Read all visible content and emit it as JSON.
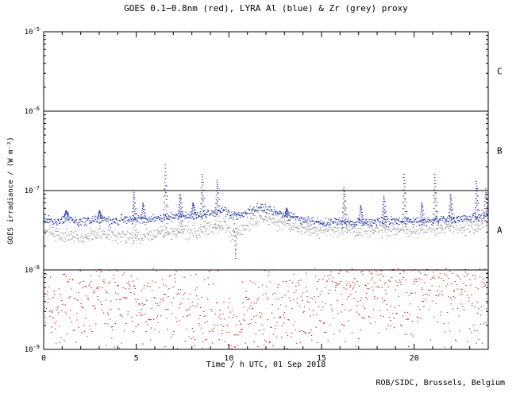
{
  "page": {
    "background": "#ffffff"
  },
  "credit": {
    "text": "ROB/SIDC, Brussels, Belgium"
  },
  "chart_data": {
    "type": "scatter",
    "title": "GOES 0.1−0.8nm (red), LYRA Al (blue) & Zr (grey) proxy",
    "xlabel": "Time / h UTC, 01 Sep 2018",
    "ylabel": "GOES irradiance / (W m⁻²)",
    "x_range": [
      0,
      24
    ],
    "x_major_ticks": [
      0,
      5,
      10,
      15,
      20
    ],
    "y_log_range": [
      -9,
      -5
    ],
    "y_tick_exponents": [
      -5,
      -6,
      -7,
      -8,
      -9
    ],
    "axis_color": "#000000",
    "grid": false,
    "legend_in_title": true,
    "class_boundaries": [
      {
        "label": "C",
        "line_value": 1e-06,
        "label_value": 3.2e-06
      },
      {
        "label": "B",
        "line_value": 1e-07,
        "label_value": 3.2e-07
      },
      {
        "label": "A",
        "line_value": 1e-08,
        "label_value": 3.2e-08
      }
    ],
    "series": [
      {
        "name": "GOES 0.1-0.8nm",
        "id": "goes-xrs",
        "color": "#cc2222",
        "points_per_hour": 40,
        "noise_dex": 0.3,
        "clip_max": 1.05e-08,
        "baseline": [
          [
            0,
            3e-09
          ],
          [
            1,
            3.2e-09
          ],
          [
            2,
            3.4e-09
          ],
          [
            3,
            3.6e-09
          ],
          [
            4,
            4e-09
          ],
          [
            5,
            4.2e-09
          ],
          [
            6,
            3.6e-09
          ],
          [
            7,
            3.2e-09
          ],
          [
            8,
            3e-09
          ],
          [
            9,
            2.6e-09
          ],
          [
            9.6,
            2e-09
          ],
          [
            10,
            1.4e-09
          ],
          [
            10.5,
            2e-09
          ],
          [
            11,
            2.8e-09
          ],
          [
            12,
            3.2e-09
          ],
          [
            13,
            3e-09
          ],
          [
            14,
            3.2e-09
          ],
          [
            15,
            3.8e-09
          ],
          [
            16,
            4.4e-09
          ],
          [
            17,
            4.6e-09
          ],
          [
            18,
            5e-09
          ],
          [
            19,
            4.6e-09
          ],
          [
            20,
            5e-09
          ],
          [
            21,
            4.8e-09
          ],
          [
            22,
            5.2e-09
          ],
          [
            23,
            4.8e-09
          ],
          [
            24,
            5e-09
          ]
        ],
        "spikes": [],
        "dips": []
      },
      {
        "name": "LYRA Zr proxy",
        "id": "lyra-zr-proxy",
        "color": "#9a9a9a",
        "points_per_hour": 40,
        "noise_dex": 0.045,
        "baseline": [
          [
            0,
            3.1e-08
          ],
          [
            1,
            2.8e-08
          ],
          [
            2,
            2.6e-08
          ],
          [
            3,
            2.9e-08
          ],
          [
            4,
            2.7e-08
          ],
          [
            5,
            2.6e-08
          ],
          [
            6,
            2.8e-08
          ],
          [
            7,
            3e-08
          ],
          [
            8,
            3.2e-08
          ],
          [
            9,
            3.3e-08
          ],
          [
            9.7,
            3.6e-08
          ],
          [
            10.1,
            2.9e-08
          ],
          [
            11,
            3.6e-08
          ],
          [
            11.7,
            4.6e-08
          ],
          [
            12.2,
            4.2e-08
          ],
          [
            13,
            3.6e-08
          ],
          [
            14,
            3.3e-08
          ],
          [
            15,
            3.1e-08
          ],
          [
            16,
            3.3e-08
          ],
          [
            17,
            3.1e-08
          ],
          [
            18,
            3.2e-08
          ],
          [
            19,
            3.3e-08
          ],
          [
            20,
            3.1e-08
          ],
          [
            21,
            3.3e-08
          ],
          [
            22,
            3.5e-08
          ],
          [
            23,
            3.5e-08
          ],
          [
            24,
            3.8e-08
          ]
        ],
        "spikes": [
          {
            "x": 4.85,
            "peak": 6.5e-08
          },
          {
            "x": 6.55,
            "peak": 1.15e-07
          },
          {
            "x": 7.35,
            "peak": 6e-08
          },
          {
            "x": 8.55,
            "peak": 9.5e-08
          },
          {
            "x": 9.35,
            "peak": 7.5e-08
          },
          {
            "x": 16.2,
            "peak": 7e-08
          },
          {
            "x": 18.35,
            "peak": 6e-08
          },
          {
            "x": 19.45,
            "peak": 1e-07
          },
          {
            "x": 21.1,
            "peak": 1e-07
          },
          {
            "x": 21.95,
            "peak": 6.5e-08
          },
          {
            "x": 23.35,
            "peak": 8e-08
          }
        ],
        "dips": [
          {
            "x": 10.35,
            "low": 1.5e-08,
            "width": 0.1
          }
        ]
      },
      {
        "name": "LYRA Al proxy",
        "id": "lyra-al-proxy",
        "color": "#2233aa",
        "points_per_hour": 40,
        "noise_dex": 0.028,
        "baseline": [
          [
            0,
            4.3e-08
          ],
          [
            0.7,
            4e-08
          ],
          [
            1.2,
            4.6e-08
          ],
          [
            1.8,
            4e-08
          ],
          [
            2.5,
            4.1e-08
          ],
          [
            3.0,
            4.4e-08
          ],
          [
            3.6,
            4.1e-08
          ],
          [
            4.3,
            4.3e-08
          ],
          [
            5.0,
            4.4e-08
          ],
          [
            5.8,
            4.3e-08
          ],
          [
            6.2,
            4.6e-08
          ],
          [
            7.0,
            4.7e-08
          ],
          [
            7.8,
            4.8e-08
          ],
          [
            8.3,
            5e-08
          ],
          [
            9.0,
            5.1e-08
          ],
          [
            9.7,
            5.6e-08
          ],
          [
            10.1,
            4.8e-08
          ],
          [
            10.6,
            5e-08
          ],
          [
            11.2,
            5.6e-08
          ],
          [
            11.7,
            6.2e-08
          ],
          [
            12.2,
            5.6e-08
          ],
          [
            12.8,
            5e-08
          ],
          [
            13.5,
            4.6e-08
          ],
          [
            14.2,
            4.2e-08
          ],
          [
            15.0,
            3.9e-08
          ],
          [
            16.0,
            4.1e-08
          ],
          [
            16.8,
            3.9e-08
          ],
          [
            17.6,
            4e-08
          ],
          [
            18.5,
            4.1e-08
          ],
          [
            19.2,
            4.2e-08
          ],
          [
            20.0,
            4e-08
          ],
          [
            20.8,
            4.1e-08
          ],
          [
            21.6,
            4.3e-08
          ],
          [
            22.4,
            4.5e-08
          ],
          [
            23.2,
            4.5e-08
          ],
          [
            24,
            4.9e-08
          ]
        ],
        "spikes": [
          {
            "x": 1.2,
            "peak": 5.6e-08
          },
          {
            "x": 3.0,
            "peak": 5.6e-08
          },
          {
            "x": 4.85,
            "peak": 9.5e-08
          },
          {
            "x": 5.35,
            "peak": 7e-08
          },
          {
            "x": 6.55,
            "peak": 2.1e-07
          },
          {
            "x": 7.35,
            "peak": 9e-08
          },
          {
            "x": 8.05,
            "peak": 7e-08
          },
          {
            "x": 8.55,
            "peak": 1.6e-07
          },
          {
            "x": 9.35,
            "peak": 1.35e-07
          },
          {
            "x": 13.1,
            "peak": 6e-08
          },
          {
            "x": 16.2,
            "peak": 1.1e-07
          },
          {
            "x": 17.1,
            "peak": 6.5e-08
          },
          {
            "x": 18.35,
            "peak": 8.5e-08
          },
          {
            "x": 19.45,
            "peak": 1.6e-07
          },
          {
            "x": 20.4,
            "peak": 7e-08
          },
          {
            "x": 21.1,
            "peak": 1.6e-07
          },
          {
            "x": 21.95,
            "peak": 9e-08
          },
          {
            "x": 23.35,
            "peak": 1.3e-07
          },
          {
            "x": 23.85,
            "peak": 1.05e-07
          }
        ],
        "dips": [
          {
            "x": 10.35,
            "low": 1.4e-08,
            "width": 0.1
          }
        ]
      }
    ]
  }
}
